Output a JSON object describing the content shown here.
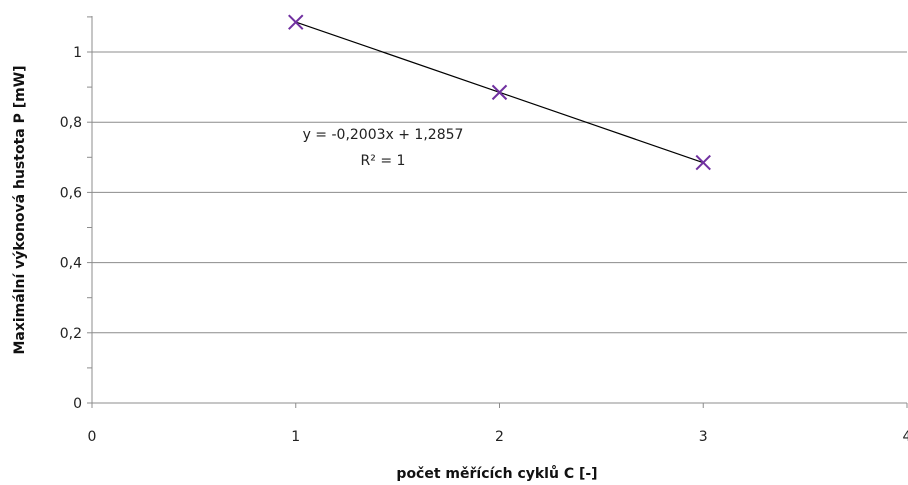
{
  "chart_data": {
    "type": "scatter",
    "xlabel": "počet měřících cyklů C [-]",
    "ylabel": "Maximální výkonová hustota P [mW]",
    "xlim": [
      0,
      4
    ],
    "ylim": [
      0,
      1.1
    ],
    "x_ticks": [
      0,
      1,
      2,
      3,
      4
    ],
    "y_ticks": [
      0,
      0.2,
      0.4,
      0.6,
      0.8,
      1
    ],
    "x_tick_labels": [
      "0",
      "1",
      "2",
      "3",
      "4"
    ],
    "y_tick_labels": [
      "0",
      "0,2",
      "0,4",
      "0,6",
      "0,8",
      "1"
    ],
    "grid": "horizontal",
    "marker": "x",
    "series": [
      {
        "x": [
          1,
          2,
          3
        ],
        "y": [
          1.085,
          0.885,
          0.685
        ],
        "color": "#7030a0"
      }
    ],
    "trendline": {
      "slope": -0.2003,
      "intercept": 1.2857,
      "color": "#000000",
      "equation": "y = -0,2003x + 1,2857",
      "r2": "R² = 1"
    }
  }
}
